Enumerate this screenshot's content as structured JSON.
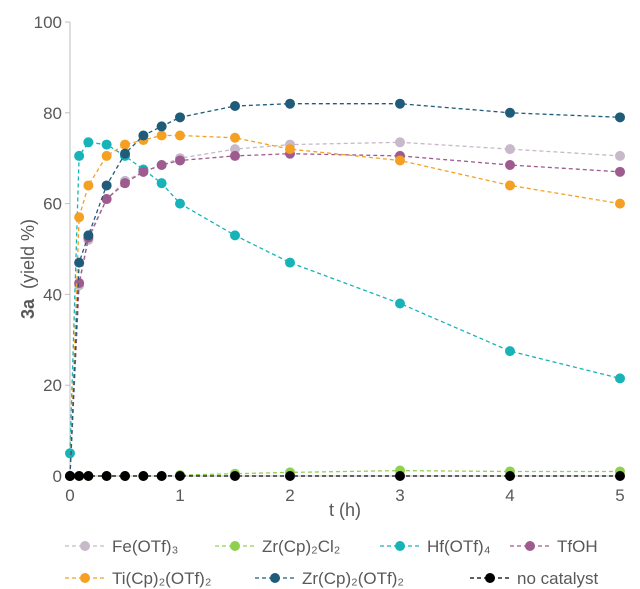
{
  "chart_data": {
    "type": "line",
    "xlabel": "t (h)",
    "ylabel": {
      "bold": "3a",
      "rest": "(yield %)"
    },
    "xlim": [
      0,
      5
    ],
    "ylim": [
      0,
      100
    ],
    "xticks": [
      "0",
      "1",
      "2",
      "3",
      "4",
      "5"
    ],
    "yticks": [
      "0",
      "20",
      "40",
      "60",
      "80",
      "100"
    ],
    "grid": false,
    "legend_placement": "bottom",
    "series": [
      {
        "name": "Fe(OTf)₃",
        "color": "#c7b9c9",
        "line": "dashed",
        "x": [
          0,
          0.083,
          0.167,
          0.333,
          0.5,
          0.667,
          0.833,
          1,
          1.5,
          2,
          3,
          4,
          5
        ],
        "y": [
          0,
          42,
          52,
          61,
          65,
          67,
          68.5,
          70,
          72,
          73,
          73.5,
          72,
          70.5
        ]
      },
      {
        "name": "Zr(Cp)₂Cl₂",
        "color": "#8fd14f",
        "line": "dashed",
        "x": [
          0,
          0.083,
          0.167,
          0.333,
          0.5,
          0.667,
          0.833,
          1,
          1.5,
          2,
          3,
          4,
          5
        ],
        "y": [
          0,
          0,
          0,
          0,
          0,
          0,
          0,
          0.2,
          0.5,
          0.8,
          1.2,
          1,
          1
        ]
      },
      {
        "name": "Hf(OTf)₄",
        "color": "#17b3b8",
        "line": "dashed",
        "x": [
          0,
          0.083,
          0.167,
          0.333,
          0.5,
          0.667,
          0.833,
          1,
          1.5,
          2,
          3,
          4,
          5
        ],
        "y": [
          5,
          70.5,
          73.5,
          73,
          70.5,
          67.5,
          64.5,
          60,
          53,
          47,
          38,
          27.5,
          21.5
        ]
      },
      {
        "name": "TfOH",
        "color": "#9e5b8f",
        "line": "dashed",
        "x": [
          0,
          0.083,
          0.167,
          0.333,
          0.5,
          0.667,
          0.833,
          1,
          1.5,
          2,
          3,
          4,
          5
        ],
        "y": [
          0,
          42.5,
          52.5,
          61,
          64.5,
          67,
          68.5,
          69.5,
          70.5,
          71,
          70.5,
          68.5,
          67
        ]
      },
      {
        "name": "Ti(Cp)₂(OTf)₂",
        "color": "#f5a023",
        "line": "dashed",
        "x": [
          0,
          0.083,
          0.167,
          0.333,
          0.5,
          0.667,
          0.833,
          1,
          1.5,
          2,
          3,
          4,
          5
        ],
        "y": [
          0,
          57,
          64,
          70.5,
          73,
          74,
          75,
          75,
          74.5,
          72,
          69.5,
          64,
          60
        ]
      },
      {
        "name": "Zr(Cp)₂(OTf)₂",
        "color": "#1f5c7a",
        "line": "dashed",
        "x": [
          0,
          0.083,
          0.167,
          0.333,
          0.5,
          0.667,
          0.833,
          1,
          1.5,
          2,
          3,
          4,
          5
        ],
        "y": [
          0,
          47,
          53,
          64,
          71,
          75,
          77,
          79,
          81.5,
          82,
          82,
          80,
          79
        ]
      },
      {
        "name": "no catalyst",
        "color": "#000000",
        "line": "dashed",
        "x": [
          0,
          0.083,
          0.167,
          0.333,
          0.5,
          0.667,
          0.833,
          1,
          1.5,
          2,
          3,
          4,
          5
        ],
        "y": [
          0,
          0,
          0,
          0,
          0,
          0,
          0,
          0,
          0,
          0,
          0,
          0,
          0
        ]
      }
    ]
  }
}
